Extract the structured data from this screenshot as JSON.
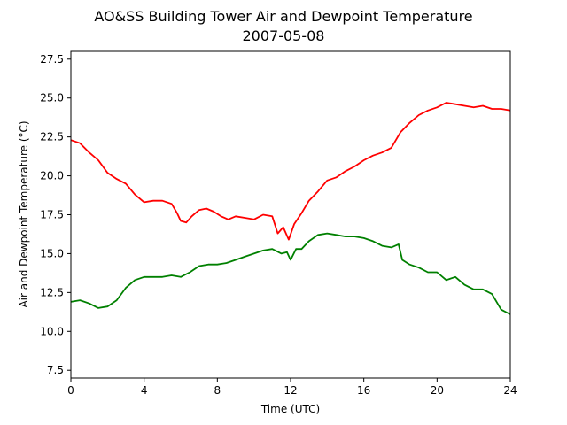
{
  "chart_data": {
    "type": "line",
    "title": "AO&SS Building Tower Air and Dewpoint Temperature",
    "subtitle": "2007-05-08",
    "xlabel": "Time (UTC)",
    "ylabel": "Air and Dewpoint Temperature (°C)",
    "xlim": [
      0,
      24
    ],
    "ylim": [
      7.0,
      28.0
    ],
    "xticks": [
      0,
      4,
      8,
      12,
      16,
      20,
      24
    ],
    "yticks": [
      7.5,
      10.0,
      12.5,
      15.0,
      17.5,
      20.0,
      22.5,
      25.0,
      27.5
    ],
    "ytick_labels": [
      "7.5",
      "10.0",
      "12.5",
      "15.0",
      "17.5",
      "20.0",
      "22.5",
      "25.0",
      "27.5"
    ],
    "grid": false,
    "legend": "none",
    "series": [
      {
        "color": "#ff0000",
        "x": [
          0,
          0.5,
          1.0,
          1.5,
          2.0,
          2.5,
          3.0,
          3.5,
          4.0,
          4.5,
          5.0,
          5.5,
          5.8,
          6.0,
          6.3,
          6.6,
          7.0,
          7.4,
          7.8,
          8.2,
          8.6,
          9.0,
          9.5,
          10.0,
          10.5,
          11.0,
          11.3,
          11.6,
          11.9,
          12.2,
          12.6,
          13.0,
          13.5,
          14.0,
          14.5,
          15.0,
          15.5,
          16.0,
          16.5,
          17.0,
          17.5,
          18.0,
          18.5,
          19.0,
          19.5,
          20.0,
          20.5,
          21.0,
          21.5,
          22.0,
          22.5,
          23.0,
          23.5,
          24.0
        ],
        "values": [
          22.3,
          22.1,
          21.5,
          21.0,
          20.2,
          19.8,
          19.5,
          18.8,
          18.3,
          18.4,
          18.4,
          18.2,
          17.6,
          17.1,
          17.0,
          17.4,
          17.8,
          17.9,
          17.7,
          17.4,
          17.2,
          17.4,
          17.3,
          17.2,
          17.5,
          17.4,
          16.3,
          16.7,
          15.9,
          16.9,
          17.6,
          18.4,
          19.0,
          19.7,
          19.9,
          20.3,
          20.6,
          21.0,
          21.3,
          21.5,
          21.8,
          22.8,
          23.4,
          23.9,
          24.2,
          24.4,
          24.7,
          24.6,
          24.5,
          24.4,
          24.5,
          24.3,
          24.3,
          24.2
        ]
      },
      {
        "color": "#008000",
        "x": [
          0,
          0.5,
          1.0,
          1.5,
          2.0,
          2.5,
          3.0,
          3.5,
          4.0,
          4.5,
          5.0,
          5.5,
          6.0,
          6.5,
          7.0,
          7.5,
          8.0,
          8.5,
          9.0,
          9.5,
          10.0,
          10.5,
          11.0,
          11.5,
          11.8,
          12.0,
          12.3,
          12.6,
          13.0,
          13.5,
          14.0,
          14.5,
          15.0,
          15.5,
          16.0,
          16.5,
          17.0,
          17.5,
          17.9,
          18.1,
          18.5,
          19.0,
          19.5,
          20.0,
          20.5,
          21.0,
          21.5,
          22.0,
          22.5,
          23.0,
          23.5,
          24.0
        ],
        "values": [
          11.9,
          12.0,
          11.8,
          11.5,
          11.6,
          12.0,
          12.8,
          13.3,
          13.5,
          13.5,
          13.5,
          13.6,
          13.5,
          13.8,
          14.2,
          14.3,
          14.3,
          14.4,
          14.6,
          14.8,
          15.0,
          15.2,
          15.3,
          15.0,
          15.1,
          14.6,
          15.3,
          15.3,
          15.8,
          16.2,
          16.3,
          16.2,
          16.1,
          16.1,
          16.0,
          15.8,
          15.5,
          15.4,
          15.6,
          14.6,
          14.3,
          14.1,
          13.8,
          13.8,
          13.3,
          13.5,
          13.0,
          12.7,
          12.7,
          12.4,
          11.4,
          11.1
        ]
      }
    ]
  }
}
